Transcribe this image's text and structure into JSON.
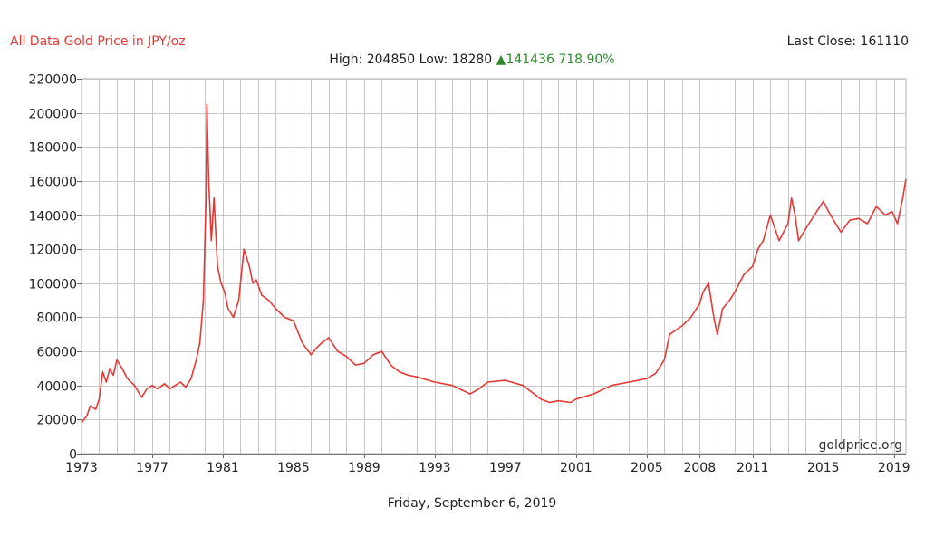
{
  "header": {
    "title": "All Data Gold Price in JPY/oz",
    "last_close_label": "Last Close:",
    "last_close": "161110",
    "high_label": "High:",
    "high": "204850",
    "low_label": "Low:",
    "low": "18280",
    "change_arrow": "▲",
    "change": "141436",
    "change_pct": "718.90%"
  },
  "footer": {
    "date": "Friday, September 6, 2019",
    "watermark": "goldprice.org"
  },
  "colors": {
    "line": "#e53935",
    "grid": "#c8c8c8",
    "title": "#e53935",
    "change": "#2e8b2e"
  },
  "chart_data": {
    "type": "line",
    "title": "All Data Gold Price in JPY/oz",
    "xlabel": "",
    "ylabel": "",
    "xlim": [
      1973.0,
      2019.68
    ],
    "ylim": [
      0,
      220000
    ],
    "y_ticks": [
      0,
      20000,
      40000,
      60000,
      80000,
      100000,
      120000,
      140000,
      160000,
      180000,
      200000,
      220000
    ],
    "x_tick_labels": [
      "1973",
      "1977",
      "1981",
      "1985",
      "1989",
      "1993",
      "1997",
      "2001",
      "2005",
      "2008",
      "2011",
      "2015",
      "2019"
    ],
    "x_tick_values": [
      1973,
      1977,
      1981,
      1985,
      1989,
      1993,
      1997,
      2001,
      2005,
      2008,
      2011,
      2015,
      2019
    ],
    "grid": true,
    "series": [
      {
        "x": [
          1973.0,
          1973.3,
          1973.5,
          1973.8,
          1974.0,
          1974.2,
          1974.4,
          1974.6,
          1974.8,
          1975.0,
          1975.3,
          1975.6,
          1976.0,
          1976.4,
          1976.7,
          1977.0,
          1977.3,
          1977.7,
          1978.0,
          1978.3,
          1978.6,
          1978.9,
          1979.2,
          1979.5,
          1979.7,
          1979.9,
          1980.05,
          1980.1,
          1980.2,
          1980.35,
          1980.5,
          1980.7,
          1980.9,
          1981.1,
          1981.3,
          1981.6,
          1981.9,
          1982.2,
          1982.5,
          1982.7,
          1982.9,
          1983.2,
          1983.6,
          1984.0,
          1984.5,
          1985.0,
          1985.5,
          1986.0,
          1986.3,
          1986.6,
          1987.0,
          1987.5,
          1988.0,
          1988.5,
          1989.0,
          1989.5,
          1990.0,
          1990.5,
          1991.0,
          1991.5,
          1992.0,
          1993.0,
          1994.0,
          1995.0,
          1995.5,
          1996.0,
          1997.0,
          1998.0,
          1999.0,
          1999.5,
          2000.0,
          2000.7,
          2001.0,
          2002.0,
          2003.0,
          2004.0,
          2005.0,
          2005.5,
          2006.0,
          2006.3,
          2007.0,
          2007.5,
          2008.0,
          2008.2,
          2008.5,
          2008.8,
          2009.0,
          2009.3,
          2009.7,
          2010.0,
          2010.5,
          2011.0,
          2011.3,
          2011.6,
          2012.0,
          2012.5,
          2013.0,
          2013.2,
          2013.4,
          2013.6,
          2014.0,
          2014.5,
          2015.0,
          2015.3,
          2015.7,
          2016.0,
          2016.5,
          2017.0,
          2017.5,
          2018.0,
          2018.5,
          2018.9,
          2019.2,
          2019.5,
          2019.68
        ],
        "values": [
          18280,
          22000,
          28000,
          26000,
          32000,
          48000,
          42000,
          50000,
          46000,
          55000,
          50000,
          44000,
          40000,
          33000,
          38000,
          40000,
          38000,
          41000,
          38000,
          40000,
          42000,
          39000,
          44000,
          55000,
          65000,
          90000,
          150000,
          204850,
          160000,
          125000,
          150000,
          110000,
          100000,
          95000,
          85000,
          80000,
          90000,
          120000,
          110000,
          100000,
          102000,
          93000,
          90000,
          85000,
          80000,
          78000,
          65000,
          58000,
          62000,
          65000,
          68000,
          60000,
          57000,
          52000,
          53000,
          58000,
          60000,
          52000,
          48000,
          46000,
          45000,
          42000,
          40000,
          35000,
          38000,
          42000,
          43000,
          40000,
          32000,
          30000,
          31000,
          30000,
          32000,
          35000,
          40000,
          42000,
          44000,
          47000,
          55000,
          70000,
          75000,
          80000,
          88000,
          95000,
          100000,
          80000,
          70000,
          85000,
          90000,
          95000,
          105000,
          110000,
          120000,
          125000,
          140000,
          125000,
          135000,
          150000,
          140000,
          125000,
          132000,
          140000,
          148000,
          142000,
          135000,
          130000,
          137000,
          138000,
          135000,
          145000,
          140000,
          142000,
          135000,
          150000,
          161110
        ]
      }
    ]
  }
}
